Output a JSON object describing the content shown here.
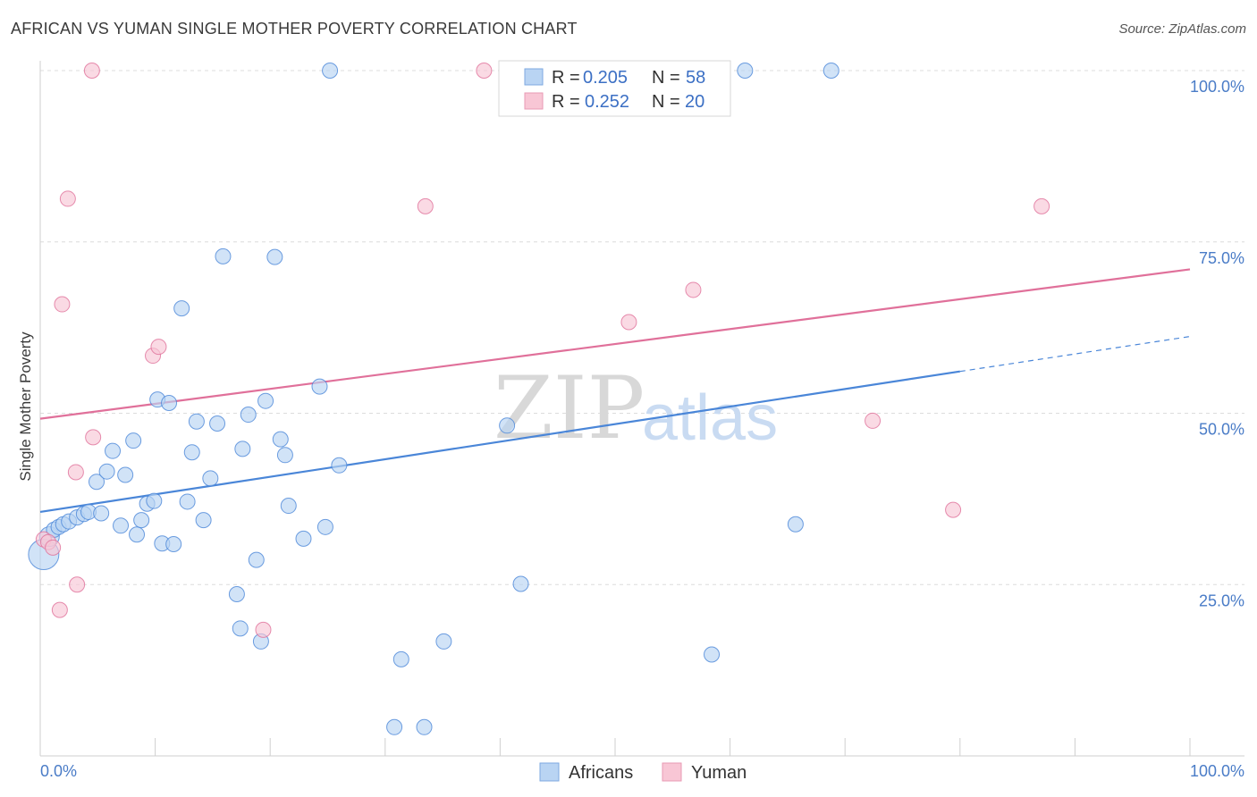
{
  "title": "AFRICAN VS YUMAN SINGLE MOTHER POVERTY CORRELATION CHART",
  "source": "Source: ZipAtlas.com",
  "watermark": {
    "zip": "ZIP",
    "atlas": "atlas"
  },
  "legend": {
    "r_label": "R =",
    "n_label": "N =",
    "rows": [
      {
        "name": "Africans",
        "r": "0.205",
        "n": "58",
        "fill": "#b9d4f3",
        "stroke": "#7ea9e0"
      },
      {
        "name": "Yuman",
        "r": "0.252",
        "n": "20",
        "fill": "#f8c6d5",
        "stroke": "#e89ab4"
      }
    ]
  },
  "chart_data": {
    "type": "scatter",
    "title": "AFRICAN VS YUMAN SINGLE MOTHER POVERTY CORRELATION CHART",
    "xlabel": "",
    "ylabel": "Single Mother Poverty",
    "xlim": [
      0,
      100
    ],
    "ylim": [
      0,
      100
    ],
    "x_tick_labels": [
      "0.0%",
      "100.0%"
    ],
    "y_tick_labels": [
      {
        "value": 100,
        "label": "100.0%"
      },
      {
        "value": 75,
        "label": "75.0%"
      },
      {
        "value": 50,
        "label": "50.0%"
      },
      {
        "value": 25,
        "label": "25.0%"
      }
    ],
    "series": [
      {
        "name": "Africans",
        "color": "#4a86d8",
        "fill": "#b9d4f3",
        "points": [
          [
            0.3,
            29.4
          ],
          [
            0.8,
            32
          ],
          [
            1.2,
            33
          ],
          [
            1.6,
            33.4
          ],
          [
            2,
            33.8
          ],
          [
            2.5,
            34.2
          ],
          [
            3.2,
            34.8
          ],
          [
            3.8,
            35.3
          ],
          [
            4.2,
            35.6
          ],
          [
            5.3,
            35.4
          ],
          [
            4.9,
            40
          ],
          [
            5.8,
            41.5
          ],
          [
            6.3,
            44.5
          ],
          [
            7.4,
            41
          ],
          [
            8.1,
            46
          ],
          [
            7,
            33.6
          ],
          [
            8.4,
            32.3
          ],
          [
            8.8,
            34.4
          ],
          [
            9.3,
            36.8
          ],
          [
            9.9,
            37.2
          ],
          [
            10.2,
            52
          ],
          [
            10.6,
            31
          ],
          [
            11.2,
            51.5
          ],
          [
            11.6,
            30.9
          ],
          [
            12.3,
            65.3
          ],
          [
            12.8,
            37.1
          ],
          [
            13.2,
            44.3
          ],
          [
            13.6,
            48.8
          ],
          [
            14.2,
            34.4
          ],
          [
            14.8,
            40.5
          ],
          [
            15.4,
            48.5
          ],
          [
            15.9,
            72.9
          ],
          [
            17.4,
            18.6
          ],
          [
            17.1,
            23.6
          ],
          [
            17.6,
            44.8
          ],
          [
            18.1,
            49.8
          ],
          [
            18.8,
            28.6
          ],
          [
            19.2,
            16.7
          ],
          [
            19.6,
            51.8
          ],
          [
            20.4,
            72.8
          ],
          [
            20.9,
            46.2
          ],
          [
            21.3,
            43.9
          ],
          [
            21.6,
            36.5
          ],
          [
            22.9,
            31.7
          ],
          [
            24.3,
            53.9
          ],
          [
            24.8,
            33.4
          ],
          [
            25.2,
            100
          ],
          [
            26,
            42.4
          ],
          [
            31.4,
            14.1
          ],
          [
            30.8,
            4.2
          ],
          [
            33.4,
            4.2
          ],
          [
            35.1,
            16.7
          ],
          [
            40.6,
            48.2
          ],
          [
            41.8,
            25.1
          ],
          [
            58.4,
            14.8
          ],
          [
            61.3,
            100
          ],
          [
            65.7,
            33.8
          ],
          [
            68.8,
            100
          ]
        ]
      },
      {
        "name": "Yuman",
        "color": "#e0709a",
        "fill": "#f8c6d5",
        "points": [
          [
            0.3,
            31.6
          ],
          [
            0.7,
            31.2
          ],
          [
            1.1,
            30.4
          ],
          [
            1.7,
            21.3
          ],
          [
            1.9,
            65.9
          ],
          [
            2.4,
            81.3
          ],
          [
            3.1,
            41.4
          ],
          [
            3.2,
            25
          ],
          [
            4.5,
            100
          ],
          [
            4.6,
            46.5
          ],
          [
            9.8,
            58.4
          ],
          [
            10.3,
            59.7
          ],
          [
            19.4,
            18.4
          ],
          [
            33.5,
            80.2
          ],
          [
            38.6,
            100
          ],
          [
            51.2,
            63.3
          ],
          [
            56.8,
            68
          ],
          [
            72.4,
            48.9
          ],
          [
            79.4,
            35.9
          ],
          [
            87.1,
            80.2
          ]
        ]
      }
    ],
    "trend_lines": [
      {
        "series": "Africans",
        "x": [
          0,
          80
        ],
        "y": [
          35.6,
          56.1
        ],
        "dashed_to": [
          100,
          61.2
        ]
      },
      {
        "series": "Yuman",
        "x": [
          0,
          100
        ],
        "y": [
          49.2,
          71
        ]
      }
    ]
  },
  "bottom_legend": [
    {
      "label": "Africans"
    },
    {
      "label": "Yuman"
    }
  ]
}
